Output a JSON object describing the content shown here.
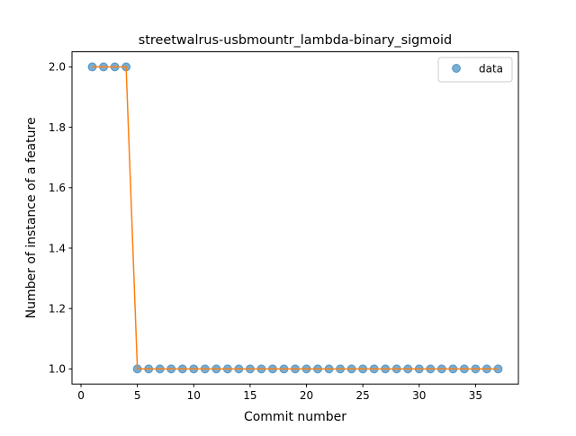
{
  "chart_data": {
    "type": "scatter",
    "title": "streetwalrus-usbmountr_lambda-binary_sigmoid",
    "xlabel": "Commit number",
    "ylabel": "Number of instance of a feature",
    "xlim": [
      -0.8,
      38.8
    ],
    "ylim": [
      0.95,
      2.05
    ],
    "xticks": [
      0,
      5,
      10,
      15,
      20,
      25,
      30,
      35
    ],
    "yticks": [
      1.0,
      1.2,
      1.4,
      1.6,
      1.8,
      2.0
    ],
    "xtick_labels": [
      "0",
      "5",
      "10",
      "15",
      "20",
      "25",
      "30",
      "35"
    ],
    "ytick_labels": [
      "1.0",
      "1.2",
      "1.4",
      "1.6",
      "1.8",
      "2.0"
    ],
    "grid": false,
    "legend": {
      "entries": [
        "data"
      ],
      "placement": "top-right"
    },
    "series": [
      {
        "name": "data",
        "kind": "scatter",
        "color": "#1f77b4",
        "x": [
          1,
          2,
          3,
          4,
          5,
          6,
          7,
          8,
          9,
          10,
          11,
          12,
          13,
          14,
          15,
          16,
          17,
          18,
          19,
          20,
          21,
          22,
          23,
          24,
          25,
          26,
          27,
          28,
          29,
          30,
          31,
          32,
          33,
          34,
          35,
          36,
          37
        ],
        "y": [
          2,
          2,
          2,
          2,
          1,
          1,
          1,
          1,
          1,
          1,
          1,
          1,
          1,
          1,
          1,
          1,
          1,
          1,
          1,
          1,
          1,
          1,
          1,
          1,
          1,
          1,
          1,
          1,
          1,
          1,
          1,
          1,
          1,
          1,
          1,
          1,
          1
        ]
      },
      {
        "kind": "line",
        "color": "#ff7f0e",
        "x": [
          1,
          2,
          3,
          4,
          5,
          6,
          7,
          8,
          9,
          10,
          11,
          12,
          13,
          14,
          15,
          16,
          17,
          18,
          19,
          20,
          21,
          22,
          23,
          24,
          25,
          26,
          27,
          28,
          29,
          30,
          31,
          32,
          33,
          34,
          35,
          36,
          37
        ],
        "y": [
          2,
          2,
          2,
          2,
          1,
          1,
          1,
          1,
          1,
          1,
          1,
          1,
          1,
          1,
          1,
          1,
          1,
          1,
          1,
          1,
          1,
          1,
          1,
          1,
          1,
          1,
          1,
          1,
          1,
          1,
          1,
          1,
          1,
          1,
          1,
          1,
          1
        ]
      }
    ]
  }
}
